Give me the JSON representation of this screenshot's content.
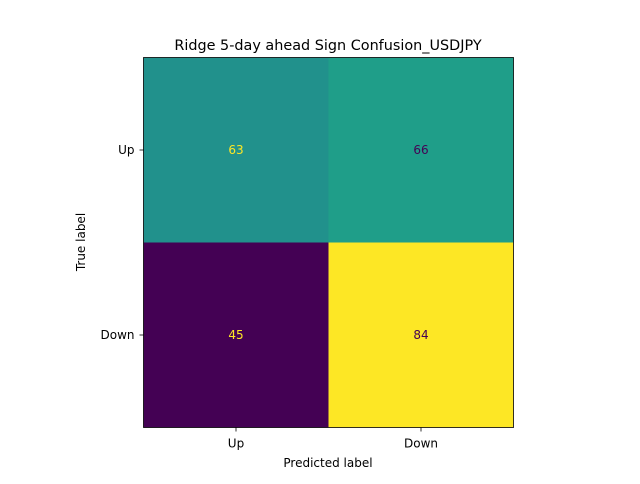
{
  "chart_data": {
    "type": "heatmap",
    "title": "Ridge 5-day ahead Sign Confusion_USDJPY",
    "xlabel": "Predicted label",
    "ylabel": "True label",
    "x_categories": [
      "Up",
      "Down"
    ],
    "y_categories": [
      "Up",
      "Down"
    ],
    "values": [
      [
        63,
        66
      ],
      [
        45,
        84
      ]
    ],
    "colormap": "viridis",
    "vmin": 45,
    "vmax": 84,
    "cell_colors": [
      [
        "#21918c",
        "#1f9e89"
      ],
      [
        "#440154",
        "#fde725"
      ]
    ],
    "value_text_colors": [
      [
        "#fde725",
        "#440154"
      ],
      [
        "#fde725",
        "#440154"
      ]
    ]
  }
}
